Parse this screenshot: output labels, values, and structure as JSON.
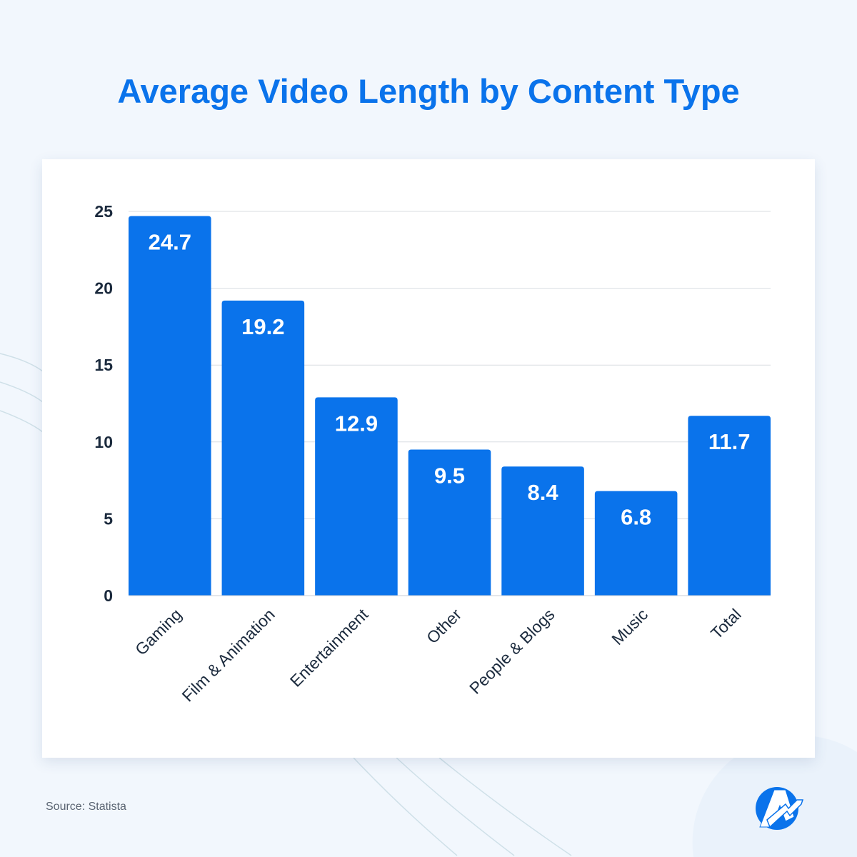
{
  "chart_data": {
    "type": "bar",
    "title": "Average Video Length by Content Type",
    "categories": [
      "Gaming",
      "Film & Animation",
      "Entertainment",
      "Other",
      "People & Blogs",
      "Music",
      "Total"
    ],
    "values": [
      24.7,
      19.2,
      12.9,
      9.5,
      8.4,
      6.8,
      11.7
    ],
    "data_labels": [
      "24.7",
      "19.2",
      "12.9",
      "9.5",
      "8.4",
      "6.8",
      "11.7"
    ],
    "xlabel": "",
    "ylabel": "",
    "ylim": [
      0,
      25
    ],
    "yticks": [
      0,
      5,
      10,
      15,
      20,
      25
    ],
    "grid": true,
    "bar_color": "#0a73eb",
    "text_color": "#1b2a3d"
  },
  "source": "Source: Statista",
  "logo": {
    "name": "logo-icon",
    "letter": "A"
  }
}
